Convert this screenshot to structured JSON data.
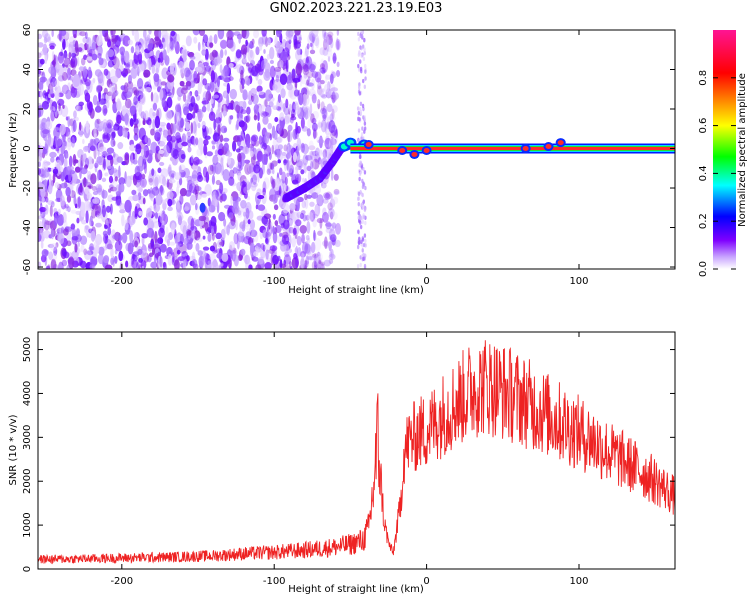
{
  "title": "GN02.2023.221.23.19.E03",
  "chart_data": [
    {
      "type": "heatmap",
      "xlabel": "Height of straight line (km)",
      "ylabel": "Frequency (Hz)",
      "xlim": [
        -255,
        163
      ],
      "ylim": [
        -61,
        60
      ],
      "x_ticks": [
        -200,
        -100,
        0,
        100
      ],
      "y_ticks": [
        -60,
        -40,
        -20,
        0,
        20,
        40,
        60
      ],
      "colorbar": {
        "label": "Normalized spectral amplitude",
        "range": [
          0,
          1
        ],
        "ticks": [
          0.0,
          0.2,
          0.4,
          0.6,
          0.8
        ],
        "colormap": [
          "#ffffff",
          "#9b30ff",
          "#0000ff",
          "#00ffff",
          "#00ff00",
          "#ffff00",
          "#ff0000",
          "#ff1493"
        ]
      },
      "features": {
        "noise_region_x": [
          -255,
          -58
        ],
        "noise_gap_x": [
          -58,
          -44
        ],
        "noise_stripe_x": [
          -45,
          -40
        ],
        "ramp_points": [
          [
            -92,
            -25
          ],
          [
            -80,
            -20
          ],
          [
            -70,
            -15
          ],
          [
            -62,
            -7
          ],
          [
            -56,
            0
          ],
          [
            -50,
            2
          ]
        ],
        "isolated_blob": [
          -147,
          -30
        ],
        "carrier_frequency": 0,
        "carrier_x_range": [
          -50,
          163
        ]
      }
    },
    {
      "type": "line",
      "xlabel": "Height of straight line (km)",
      "ylabel": "SNR (10 * v/v)",
      "xlim": [
        -255,
        163
      ],
      "ylim": [
        0,
        5400
      ],
      "x_ticks": [
        -200,
        -100,
        0,
        100
      ],
      "y_ticks": [
        0,
        1000,
        2000,
        3000,
        4000,
        5000
      ],
      "series": [
        {
          "color": "#ee2222",
          "x": [
            -255,
            -230,
            -200,
            -170,
            -140,
            -120,
            -100,
            -80,
            -60,
            -50,
            -42,
            -38,
            -35,
            -32,
            -28,
            -25,
            -22,
            -20,
            -17,
            -15,
            -12,
            -8,
            -5,
            0,
            10,
            20,
            30,
            40,
            50,
            60,
            70,
            80,
            90,
            100,
            110,
            120,
            130,
            140,
            150,
            163
          ],
          "y": [
            220,
            230,
            250,
            270,
            300,
            350,
            380,
            430,
            500,
            560,
            650,
            900,
            1800,
            3000,
            1100,
            600,
            350,
            800,
            1500,
            2600,
            2900,
            3000,
            3100,
            3150,
            3500,
            3800,
            4100,
            4200,
            4050,
            3900,
            3700,
            3500,
            3300,
            3100,
            2900,
            2650,
            2450,
            2250,
            2000,
            1650
          ]
        }
      ]
    }
  ]
}
